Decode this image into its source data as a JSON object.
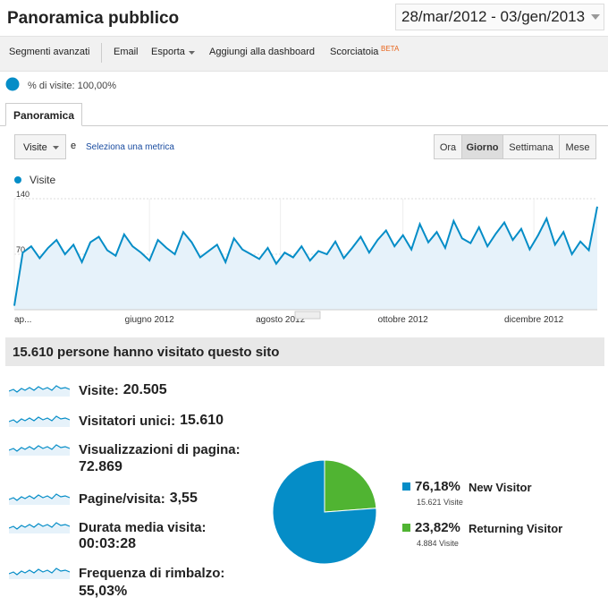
{
  "header": {
    "title": "Panoramica pubblico",
    "date_range": "28/mar/2012 - 03/gen/2013"
  },
  "toolbar": {
    "items": [
      "Segmenti avanzati",
      "Email",
      "Esporta",
      "Aggiungi alla dashboard",
      "Scorciatoia"
    ],
    "beta": "BETA"
  },
  "segment": {
    "label": "% di visite: 100,00%"
  },
  "tab": "Panoramica",
  "controls": {
    "metric": "Visite",
    "conjunction": "e",
    "link": "Seleziona una metrica",
    "periods": [
      "Ora",
      "Giorno",
      "Settimana",
      "Mese"
    ]
  },
  "chart_data": [
    {
      "type": "line",
      "series": [
        {
          "name": "Visite",
          "color": "#058dc7",
          "values": [
            5,
            72,
            80,
            65,
            78,
            88,
            70,
            82,
            60,
            85,
            92,
            75,
            68,
            95,
            80,
            72,
            62,
            88,
            78,
            70,
            98,
            85,
            66,
            74,
            82,
            60,
            90,
            76,
            70,
            64,
            78,
            58,
            72,
            66,
            80,
            62,
            74,
            70,
            86,
            65,
            78,
            92,
            72,
            88,
            100,
            80,
            94,
            76,
            108,
            85,
            98,
            78,
            112,
            90,
            84,
            104,
            80,
            96,
            110,
            88,
            102,
            76,
            94,
            115,
            82,
            98,
            70,
            86,
            75,
            130
          ]
        }
      ],
      "xlim": [
        0,
        69
      ],
      "xticks": [
        {
          "value": 0,
          "label": "ap..."
        },
        {
          "value": 16,
          "label": "giugno 2012"
        },
        {
          "value": 31.5,
          "label": "agosto 2012"
        },
        {
          "value": 46,
          "label": "ottobre 2012"
        },
        {
          "value": 61.5,
          "label": "dicembre 2012"
        }
      ],
      "ylim": [
        0,
        140
      ],
      "yticks": [
        70,
        140
      ]
    },
    {
      "type": "pie",
      "categories": [
        "New Visitor",
        "Returning Visitor"
      ],
      "values": [
        76.18,
        23.82
      ],
      "value_labels": [
        "76,18%",
        "23,82%"
      ],
      "colors": [
        "#058dc7",
        "#50b432"
      ],
      "sublabels": [
        "15.621 Visite",
        "4.884 Visite"
      ]
    }
  ],
  "summary": {
    "headline": "15.610 persone hanno visitato questo sito",
    "metrics": [
      {
        "label": "Visite:",
        "value": "20.505"
      },
      {
        "label": "Visitatori unici:",
        "value": "15.610"
      },
      {
        "label": "Visualizzazioni di pagina:",
        "value": "72.869"
      },
      {
        "label": "Pagine/visita:",
        "value": "3,55"
      },
      {
        "label": "Durata media visita:",
        "value": "00:03:28"
      },
      {
        "label": "Frequenza di rimbalzo:",
        "value": "55,03%"
      }
    ]
  }
}
